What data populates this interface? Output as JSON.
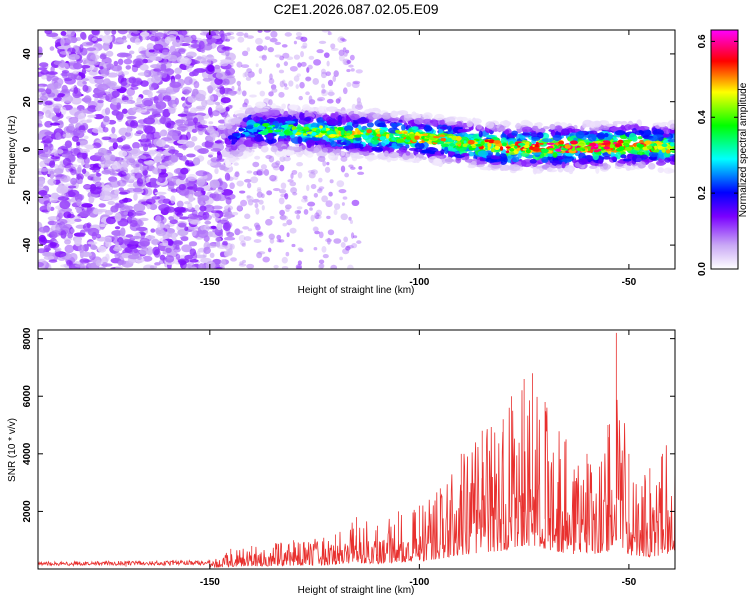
{
  "title": "C2E1.2026.087.02.05.E09",
  "chart_data": [
    {
      "type": "heatmap",
      "name": "spectrogram",
      "xlabel": "Height of straight line (km)",
      "ylabel": "Frequency (Hz)",
      "xlim": [
        -191,
        -39
      ],
      "ylim": [
        -50,
        50
      ],
      "xticks": [
        -150,
        -100,
        -50
      ],
      "yticks": [
        -40,
        -20,
        0,
        20,
        40
      ],
      "colorbar": {
        "label": "Normalized spectral amplitude",
        "range": [
          0,
          0.63
        ],
        "ticks": [
          0.0,
          0.2,
          0.4,
          0.6
        ]
      },
      "ridge": {
        "x": [
          -146,
          -140,
          -130,
          -120,
          -110,
          -100,
          -90,
          -80,
          -70,
          -60,
          -50,
          -40
        ],
        "freq_hz": [
          3,
          9,
          8,
          7,
          6,
          5,
          3,
          1,
          1,
          1,
          2,
          1
        ],
        "peak_amplitude": [
          0.15,
          0.35,
          0.42,
          0.48,
          0.5,
          0.5,
          0.5,
          0.55,
          0.58,
          0.6,
          0.58,
          0.5
        ]
      }
    },
    {
      "type": "line",
      "name": "snr",
      "xlabel": "Height of straight line (km)",
      "ylabel": "SNR (10 * v/v)",
      "xlim": [
        -191,
        -39
      ],
      "ylim": [
        0,
        8300
      ],
      "xticks": [
        -150,
        -100,
        -50
      ],
      "yticks": [
        2000,
        4000,
        6000,
        8000
      ],
      "color": "#e8302e",
      "envelope": {
        "x": [
          -191,
          -170,
          -150,
          -145,
          -140,
          -130,
          -120,
          -115,
          -110,
          -105,
          -100,
          -95,
          -90,
          -85,
          -80,
          -78,
          -75,
          -73,
          -70,
          -65,
          -60,
          -55,
          -53,
          -50,
          -45,
          -42,
          -39
        ],
        "peak": [
          250,
          280,
          300,
          700,
          800,
          1000,
          1200,
          1800,
          1500,
          2000,
          2200,
          2800,
          4000,
          4800,
          5200,
          6000,
          6600,
          6800,
          5800,
          4500,
          4000,
          5000,
          8200,
          4000,
          3500,
          4000,
          5000
        ]
      }
    }
  ]
}
